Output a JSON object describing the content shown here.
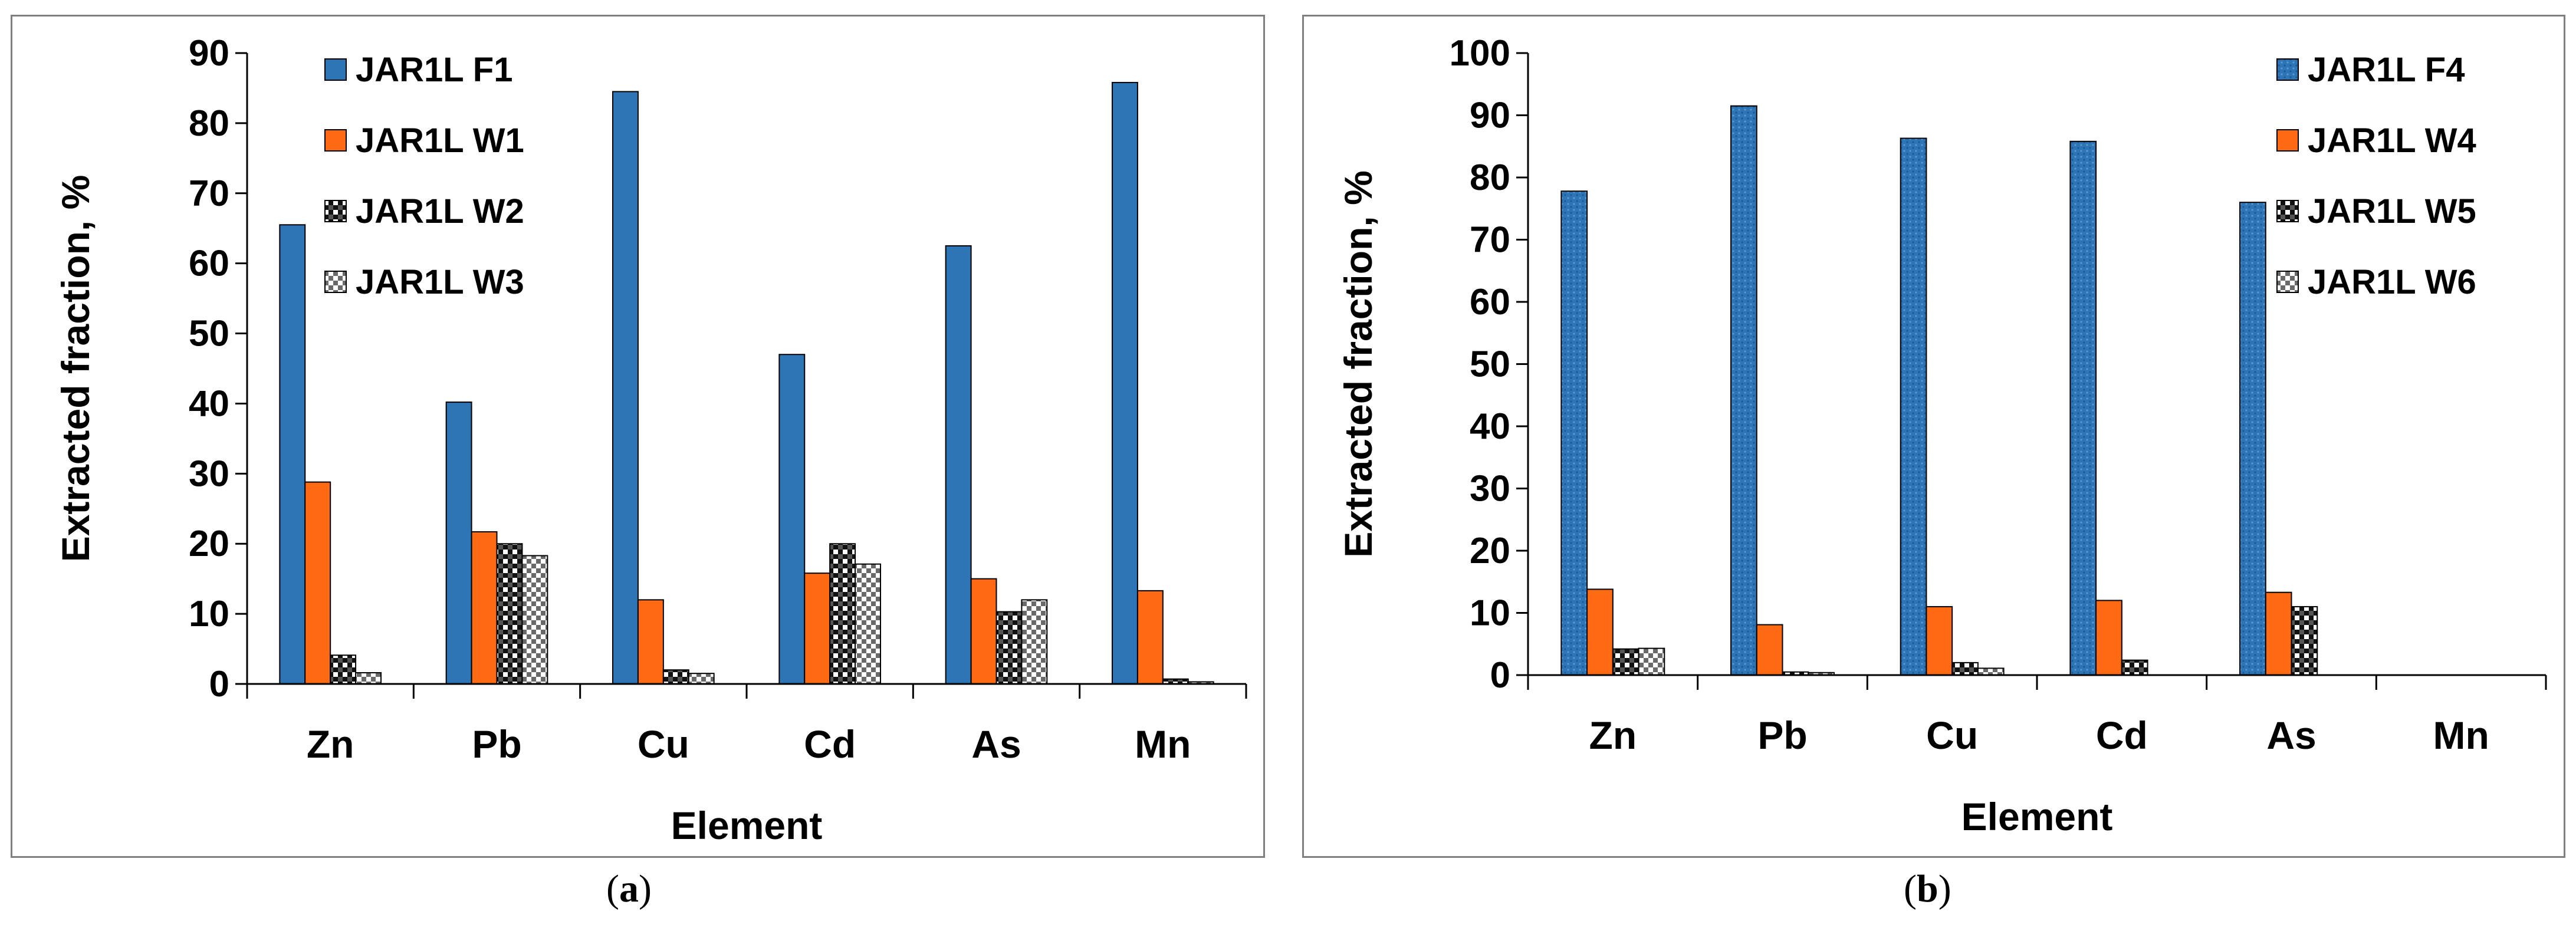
{
  "chart_data": [
    {
      "type": "bar",
      "panel_label": "a",
      "categories": [
        "Zn",
        "Pb",
        "Cu",
        "Cd",
        "As",
        "Mn"
      ],
      "series": [
        {
          "name": "JAR1L F1",
          "color": "#2e75b6",
          "pattern": "solid",
          "values": [
            65.5,
            40.2,
            84.5,
            47,
            62.5,
            85.8
          ]
        },
        {
          "name": "JAR1L W1",
          "color": "#ff6a13",
          "pattern": "solid",
          "values": [
            28.8,
            21.7,
            12,
            15.8,
            15,
            13.3
          ]
        },
        {
          "name": "JAR1L W2",
          "color": "#000000",
          "pattern": "dark-check",
          "values": [
            4.1,
            20,
            2,
            20,
            10.3,
            0.7
          ]
        },
        {
          "name": "JAR1L W3",
          "color": "#000000",
          "pattern": "light-check",
          "values": [
            1.6,
            18.3,
            1.5,
            17.1,
            12,
            0.3
          ]
        }
      ],
      "xlabel": "Element",
      "ylabel": "Extracted fraction, %",
      "ylim": [
        0,
        90
      ],
      "yticks": [
        0,
        10,
        20,
        30,
        40,
        50,
        60,
        70,
        80,
        90
      ],
      "legend": "top-left"
    },
    {
      "type": "bar",
      "panel_label": "b",
      "categories": [
        "Zn",
        "Pb",
        "Cu",
        "Cd",
        "As",
        "Mn"
      ],
      "series": [
        {
          "name": "JAR1L F4",
          "color": "#2e75b6",
          "pattern": "dotted",
          "values": [
            77.8,
            91.5,
            86.3,
            85.8,
            76,
            0
          ]
        },
        {
          "name": "JAR1L W4",
          "color": "#ff6a13",
          "pattern": "solid",
          "values": [
            13.8,
            8.1,
            11,
            12,
            13.3,
            0
          ]
        },
        {
          "name": "JAR1L W5",
          "color": "#000000",
          "pattern": "dark-check",
          "values": [
            4.2,
            0.5,
            2,
            2.4,
            11,
            0
          ]
        },
        {
          "name": "JAR1L W6",
          "color": "#000000",
          "pattern": "light-check",
          "values": [
            4.3,
            0.4,
            1.1,
            0,
            0,
            0
          ]
        }
      ],
      "xlabel": "Element",
      "ylabel": "Extracted fraction, %",
      "ylim": [
        0,
        100
      ],
      "yticks": [
        0,
        10,
        20,
        30,
        40,
        50,
        60,
        70,
        80,
        90,
        100
      ],
      "legend": "top-right"
    }
  ],
  "captions": {
    "a": "a",
    "b": "b"
  }
}
